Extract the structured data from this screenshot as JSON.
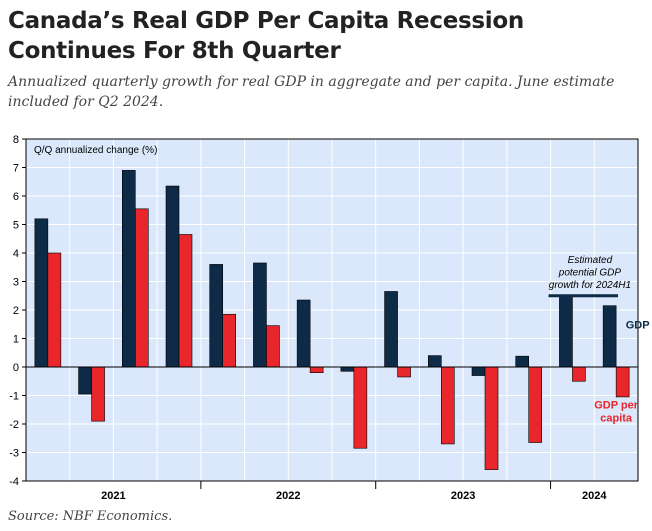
{
  "title": "Canada’s Real GDP Per Capita Recession Continues For 8th Quarter",
  "subtitle": "Annualized quarterly growth for real GDP in aggregate and per capita. June estimate included for Q2 2024.",
  "source": "Source: NBF Economics.",
  "colors": {
    "gdp": "#0d2b47",
    "gdp_per_capita": "#e8262c",
    "plot_background": "#dbe8fb",
    "grid": "#ffffff",
    "potential_line": "#0d2b47"
  },
  "chart_data": {
    "type": "bar",
    "ylabel": "Q/Q annualized change (%)",
    "ylim": [
      -4,
      8
    ],
    "yticks": [
      -4,
      -3,
      -2,
      -1,
      0,
      1,
      2,
      3,
      4,
      5,
      6,
      7,
      8
    ],
    "grid": true,
    "quarters": [
      "2021Q1",
      "2021Q2",
      "2021Q3",
      "2021Q4",
      "2022Q1",
      "2022Q2",
      "2022Q3",
      "2022Q4",
      "2023Q1",
      "2023Q2",
      "2023Q3",
      "2023Q4",
      "2024Q1",
      "2024Q2"
    ],
    "year_labels": [
      "2021",
      "2022",
      "2023",
      "2024"
    ],
    "series": [
      {
        "name": "GDP",
        "values": [
          5.2,
          -0.95,
          6.9,
          6.35,
          3.6,
          3.65,
          2.35,
          -0.15,
          2.65,
          0.4,
          -0.3,
          0.38,
          2.5,
          2.15
        ]
      },
      {
        "name": "GDP per capita",
        "values": [
          4.0,
          -1.9,
          5.55,
          4.65,
          1.85,
          1.45,
          -0.2,
          -2.85,
          -0.35,
          -2.7,
          -3.6,
          -2.65,
          -0.5,
          -1.05
        ]
      }
    ],
    "annotations": {
      "potential_growth_text": "Estimated potential GDP growth for 2024H1",
      "potential_growth_value": 2.5,
      "gdp_label": "GDP",
      "gdp_per_capita_label": "GDP per capita"
    }
  }
}
